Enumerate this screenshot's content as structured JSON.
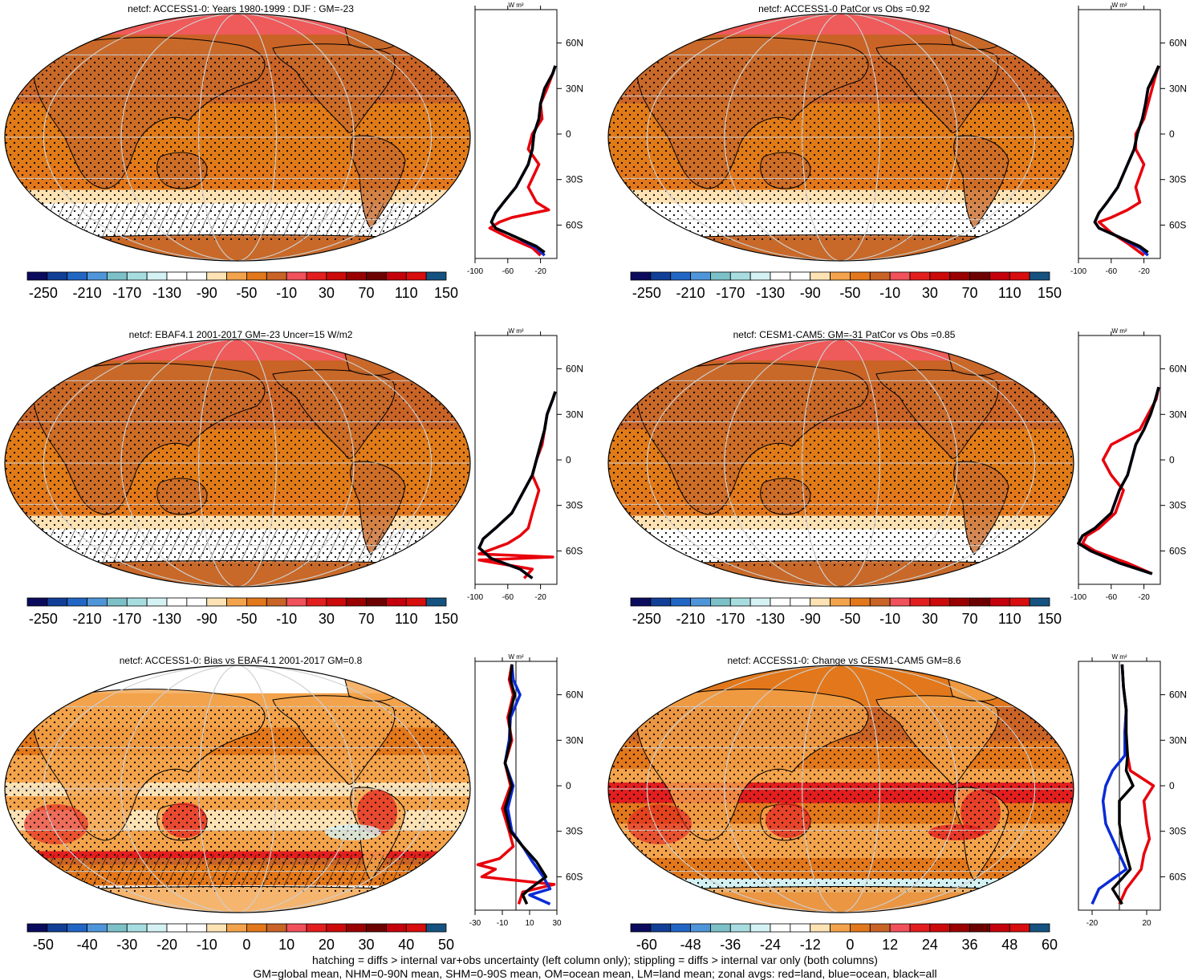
{
  "chart_data": [
    {
      "type": "heatmap",
      "panel": "row1-left",
      "title": "netcf: ACCESS1-0: Years 1980-1999 : DJF : GM=-23",
      "colorbar": {
        "ticks": [
          "-250",
          "-210",
          "-170",
          "-130",
          "-90",
          "-50",
          "-10",
          "30",
          "70",
          "110",
          "150"
        ]
      },
      "profile": {
        "type": "line",
        "unit": "W m²",
        "xticks": [
          "-100",
          "-60",
          "-20"
        ],
        "xlim": [
          -100,
          0
        ],
        "yticks": [
          "60N",
          "30N",
          "0",
          "30S",
          "60S"
        ],
        "series": [
          {
            "color": "#e8000b",
            "x": [
              -2,
              -5,
              -12,
              -20,
              -18,
              -30,
              -35,
              -22,
              -35,
              -25,
              -10,
              -55,
              -70,
              -82,
              -60,
              -30,
              -20
            ],
            "y": [
              45,
              40,
              30,
              20,
              10,
              0,
              -10,
              -20,
              -35,
              -45,
              -50,
              -55,
              -58,
              -62,
              -68,
              -75,
              -80
            ]
          },
          {
            "color": "#0a2bd6",
            "x": [
              -2,
              -5,
              -15,
              -20,
              -22,
              -28,
              -30,
              -35,
              -50,
              -65,
              -75,
              -80,
              -75,
              -50,
              -25,
              -15
            ],
            "y": [
              45,
              40,
              30,
              20,
              10,
              0,
              -10,
              -20,
              -35,
              -45,
              -52,
              -58,
              -62,
              -68,
              -75,
              -80
            ]
          },
          {
            "color": "#000000",
            "x": [
              -2,
              -5,
              -15,
              -20,
              -22,
              -28,
              -30,
              -35,
              -50,
              -65,
              -75,
              -80,
              -75,
              -50,
              -25,
              -15
            ],
            "y": [
              45,
              40,
              30,
              20,
              10,
              0,
              -10,
              -20,
              -35,
              -45,
              -52,
              -58,
              -62,
              -68,
              -74,
              -78
            ]
          }
        ]
      }
    },
    {
      "type": "heatmap",
      "panel": "row1-right",
      "title": "netcf: ACCESS1-0 PatCor vs Obs =0.92",
      "colorbar": {
        "ticks": [
          "-250",
          "-210",
          "-170",
          "-130",
          "-90",
          "-50",
          "-10",
          "30",
          "70",
          "110",
          "150"
        ]
      },
      "profile": {
        "type": "line",
        "unit": "W m²",
        "xticks": [
          "-100",
          "-60",
          "-20"
        ],
        "xlim": [
          -100,
          0
        ],
        "yticks": [
          "60N",
          "30N",
          "0",
          "30S",
          "60S"
        ],
        "series": [
          {
            "color": "#e8000b",
            "x": [
              -2,
              -5,
              -10,
              -15,
              -20,
              -30,
              -30,
              -20,
              -30,
              -25,
              -40,
              -60,
              -75,
              -60,
              -40,
              -20
            ],
            "y": [
              45,
              40,
              30,
              20,
              10,
              0,
              -10,
              -20,
              -35,
              -45,
              -50,
              -55,
              -58,
              -65,
              -72,
              -80
            ]
          },
          {
            "color": "#0a2bd6",
            "x": [
              -2,
              -6,
              -15,
              -18,
              -22,
              -28,
              -32,
              -40,
              -52,
              -65,
              -75,
              -80,
              -75,
              -50,
              -25,
              -15
            ],
            "y": [
              45,
              40,
              30,
              20,
              10,
              0,
              -10,
              -20,
              -35,
              -45,
              -52,
              -58,
              -62,
              -68,
              -75,
              -80
            ]
          },
          {
            "color": "#000000",
            "x": [
              -2,
              -6,
              -15,
              -18,
              -22,
              -28,
              -32,
              -40,
              -52,
              -65,
              -75,
              -80,
              -75,
              -50,
              -25,
              -15
            ],
            "y": [
              45,
              40,
              30,
              20,
              10,
              0,
              -10,
              -20,
              -35,
              -45,
              -52,
              -58,
              -62,
              -68,
              -74,
              -78
            ]
          }
        ]
      }
    },
    {
      "type": "heatmap",
      "panel": "row2-left",
      "title": "netcf: EBAF4.1 2001-2017 GM=-23 Uncer=15 W/m2",
      "colorbar": {
        "ticks": [
          "-250",
          "-210",
          "-170",
          "-130",
          "-90",
          "-50",
          "-10",
          "30",
          "70",
          "110",
          "150"
        ]
      },
      "profile": {
        "type": "line",
        "unit": "W m²",
        "xticks": [
          "-100",
          "-60",
          "-20"
        ],
        "xlim": [
          -100,
          0
        ],
        "yticks": [
          "60N",
          "30N",
          "0",
          "30S",
          "60S"
        ],
        "series": [
          {
            "color": "#e8000b",
            "x": [
              -2,
              -5,
              -12,
              -15,
              -18,
              -25,
              -30,
              -22,
              -30,
              -35,
              -45,
              -60,
              -95,
              -5,
              -95,
              -30,
              -40
            ],
            "y": [
              45,
              40,
              30,
              20,
              10,
              0,
              -10,
              -20,
              -35,
              -45,
              -50,
              -55,
              -62,
              -64,
              -66,
              -72,
              -78
            ]
          },
          {
            "color": "#0a2bd6",
            "x": [
              -2,
              -5,
              -12,
              -15,
              -20,
              -25,
              -30,
              -40,
              -55,
              -75,
              -90,
              -95,
              -80,
              -45,
              -30
            ],
            "y": [
              45,
              40,
              30,
              20,
              10,
              0,
              -10,
              -20,
              -35,
              -45,
              -52,
              -58,
              -65,
              -72,
              -78
            ]
          },
          {
            "color": "#000000",
            "x": [
              -2,
              -5,
              -12,
              -15,
              -20,
              -25,
              -30,
              -40,
              -55,
              -75,
              -90,
              -95,
              -80,
              -45,
              -30
            ],
            "y": [
              45,
              40,
              30,
              20,
              10,
              0,
              -10,
              -20,
              -35,
              -45,
              -52,
              -58,
              -65,
              -72,
              -78
            ]
          }
        ]
      }
    },
    {
      "type": "heatmap",
      "panel": "row2-right",
      "title": "netcf: CESM1-CAM5: GM=-31 PatCor vs Obs =0.85",
      "colorbar": {
        "ticks": [
          "-250",
          "-210",
          "-170",
          "-130",
          "-90",
          "-50",
          "-10",
          "30",
          "70",
          "110",
          "150"
        ]
      },
      "profile": {
        "type": "line",
        "unit": "W m²",
        "xticks": [
          "-100",
          "-60",
          "-20"
        ],
        "xlim": [
          -100,
          0
        ],
        "yticks": [
          "60N",
          "30N",
          "0",
          "30S",
          "60S"
        ],
        "series": [
          {
            "color": "#e8000b",
            "x": [
              -2,
              -5,
              -15,
              -25,
              -60,
              -70,
              -60,
              -45,
              -55,
              -75,
              -90,
              -95,
              -80,
              -40,
              -10
            ],
            "y": [
              48,
              40,
              30,
              20,
              10,
              0,
              -10,
              -20,
              -35,
              -45,
              -50,
              -55,
              -60,
              -68,
              -75
            ]
          },
          {
            "color": "#0a2bd6",
            "x": [
              -2,
              -6,
              -12,
              -20,
              -30,
              -35,
              -40,
              -50,
              -60,
              -80,
              -95,
              -100,
              -85,
              -50,
              -10
            ],
            "y": [
              48,
              40,
              30,
              20,
              10,
              0,
              -10,
              -20,
              -35,
              -45,
              -50,
              -55,
              -60,
              -68,
              -75
            ]
          },
          {
            "color": "#000000",
            "x": [
              -2,
              -6,
              -12,
              -20,
              -30,
              -35,
              -40,
              -50,
              -60,
              -80,
              -95,
              -100,
              -85,
              -50,
              -10
            ],
            "y": [
              48,
              40,
              30,
              20,
              10,
              0,
              -10,
              -20,
              -35,
              -45,
              -50,
              -55,
              -60,
              -68,
              -75
            ]
          }
        ]
      }
    },
    {
      "type": "heatmap",
      "panel": "row3-left",
      "title": "netcf: ACCESS1-0: Bias vs EBAF4.1 2001-2017 GM=0.8",
      "colorbar": {
        "ticks": [
          "-50",
          "-40",
          "-30",
          "-20",
          "-10",
          "0",
          "10",
          "20",
          "30",
          "40",
          "50"
        ]
      },
      "profile": {
        "type": "line",
        "unit": "W m²",
        "xticks": [
          "-30",
          "-10",
          "10",
          "30"
        ],
        "xlim": [
          -30,
          30
        ],
        "yticks": [
          "60N",
          "30N",
          "0",
          "30S",
          "60S"
        ],
        "vline": 0,
        "series": [
          {
            "color": "#e8000b",
            "x": [
              -3,
              -5,
              -2,
              -6,
              -3,
              -8,
              -4,
              -10,
              -5,
              -2,
              -12,
              -28,
              -15,
              -25,
              28,
              5,
              2
            ],
            "y": [
              80,
              70,
              60,
              45,
              30,
              15,
              0,
              -15,
              -30,
              -40,
              -48,
              -52,
              -55,
              -60,
              -65,
              -70,
              -78
            ]
          },
          {
            "color": "#0a2bd6",
            "x": [
              -3,
              -2,
              3,
              -4,
              -5,
              -8,
              -2,
              -6,
              -3,
              5,
              12,
              20,
              25,
              10,
              25
            ],
            "y": [
              80,
              70,
              60,
              45,
              30,
              15,
              0,
              -15,
              -30,
              -40,
              -50,
              -60,
              -68,
              -72,
              -78
            ]
          },
          {
            "color": "#000000",
            "x": [
              -3,
              -4,
              -1,
              -5,
              -4,
              -8,
              -3,
              -8,
              -4,
              5,
              15,
              22,
              10,
              5,
              8
            ],
            "y": [
              80,
              70,
              60,
              45,
              30,
              15,
              0,
              -15,
              -30,
              -40,
              -50,
              -60,
              -68,
              -72,
              -78
            ]
          }
        ]
      }
    },
    {
      "type": "heatmap",
      "panel": "row3-right",
      "title": "netcf: ACCESS1-0: Change vs CESM1-CAM5 GM=8.6",
      "colorbar": {
        "ticks": [
          "-60",
          "-48",
          "-36",
          "-24",
          "-12",
          "0",
          "12",
          "24",
          "36",
          "48",
          "60"
        ]
      },
      "profile": {
        "type": "line",
        "unit": "W m²",
        "xticks": [
          "-20",
          "20"
        ],
        "xlim": [
          -30,
          30
        ],
        "yticks": [
          "60N",
          "30N",
          "0",
          "30S",
          "60S"
        ],
        "vline": 0,
        "series": [
          {
            "color": "#e8000b",
            "x": [
              2,
              3,
              5,
              4,
              6,
              8,
              25,
              18,
              20,
              22,
              18,
              16,
              5,
              0
            ],
            "y": [
              80,
              65,
              50,
              35,
              20,
              10,
              0,
              -10,
              -25,
              -35,
              -45,
              -55,
              -68,
              -78
            ]
          },
          {
            "color": "#0a2bd6",
            "x": [
              2,
              3,
              5,
              4,
              4,
              -5,
              -10,
              -12,
              -10,
              -5,
              0,
              5,
              -15,
              -20
            ],
            "y": [
              80,
              65,
              50,
              35,
              20,
              10,
              0,
              -10,
              -25,
              -35,
              -45,
              -55,
              -68,
              -78
            ]
          },
          {
            "color": "#000000",
            "x": [
              2,
              3,
              5,
              5,
              6,
              5,
              10,
              0,
              0,
              2,
              5,
              8,
              -5,
              2
            ],
            "y": [
              80,
              65,
              50,
              35,
              20,
              10,
              0,
              -10,
              -25,
              -35,
              -45,
              -55,
              -68,
              -78
            ]
          }
        ]
      }
    }
  ],
  "footer": {
    "line1": "hatching = diffs > internal var+obs uncertainty (left column only); stippling = diffs > internal var only (both columns)",
    "line2": "GM=global mean, NHM=0-90N mean, SHM=0-90S mean, OM=ocean mean, LM=land mean; zonal avgs: red=land, blue=ocean, black=all"
  },
  "colors": {
    "scale": [
      "#0b0b5e",
      "#113e96",
      "#2166c4",
      "#4f95d9",
      "#7cc0c8",
      "#a7dde0",
      "#d4f1f3",
      "#ffffff",
      "#ffffff",
      "#fde2b4",
      "#f3a34b",
      "#e2781b",
      "#c96326",
      "#f0515a",
      "#e21e1e",
      "#cc0a0a",
      "#9a0000",
      "#6d0000",
      "#c4000b",
      "#d80d0d",
      "#155280"
    ],
    "ocean": "#e07b18",
    "land": "#c86a2a",
    "polar": "#ef5a5a",
    "southern": "#ffffff"
  }
}
